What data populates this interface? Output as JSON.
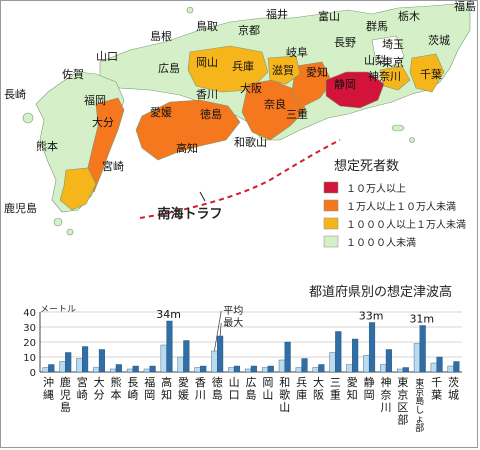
{
  "map": {
    "trough_label": "南海トラフ",
    "prefecture_labels": [
      {
        "name": "福島"
      },
      {
        "name": "鳥取"
      },
      {
        "name": "福井"
      },
      {
        "name": "富山"
      },
      {
        "name": "栃木"
      },
      {
        "name": "島根"
      },
      {
        "name": "京都"
      },
      {
        "name": "群馬"
      },
      {
        "name": "茨城"
      },
      {
        "name": "長野"
      },
      {
        "name": "埼玉"
      },
      {
        "name": "岐阜"
      },
      {
        "name": "山口"
      },
      {
        "name": "山梨"
      },
      {
        "name": "東京"
      },
      {
        "name": "千葉"
      },
      {
        "name": "佐賀"
      },
      {
        "name": "広島"
      },
      {
        "name": "岡山"
      },
      {
        "name": "兵庫"
      },
      {
        "name": "滋賀"
      },
      {
        "name": "愛知"
      },
      {
        "name": "静岡"
      },
      {
        "name": "神奈川"
      },
      {
        "name": "長崎"
      },
      {
        "name": "福岡"
      },
      {
        "name": "香川"
      },
      {
        "name": "大阪"
      },
      {
        "name": "大分"
      },
      {
        "name": "愛媛"
      },
      {
        "name": "徳島"
      },
      {
        "name": "奈良"
      },
      {
        "name": "三重"
      },
      {
        "name": "熊本"
      },
      {
        "name": "高知"
      },
      {
        "name": "和歌山"
      },
      {
        "name": "宮崎"
      },
      {
        "name": "鹿児島"
      }
    ]
  },
  "legend": {
    "title": "想定死者数",
    "items": [
      {
        "label": "１０万人以上",
        "color": "#d2143a"
      },
      {
        "label": "１万人以上１０万人未満",
        "color": "#f5781e"
      },
      {
        "label": "１０００人以上１万人未満",
        "color": "#f7b51c"
      },
      {
        "label": "１０００人未満",
        "color": "#d5f0c9"
      }
    ]
  },
  "chart_data": {
    "type": "bar",
    "title": "都道府県別の想定津波高",
    "ylabel": "メートル",
    "ylim": [
      0,
      40
    ],
    "yticks": [
      0,
      10,
      20,
      30,
      40
    ],
    "categories": [
      "沖縄",
      "鹿児島",
      "宮崎",
      "大分",
      "熊本",
      "長崎",
      "福岡",
      "高知",
      "愛媛",
      "香川",
      "徳島",
      "山口",
      "広島",
      "岡山",
      "和歌山",
      "兵庫",
      "大阪",
      "三重",
      "愛知",
      "静岡",
      "神奈川",
      "東京区部",
      "東京島しょ部",
      "千葉",
      "茨城"
    ],
    "category_labels": [
      "沖縄",
      "鹿児島",
      "宮崎",
      "大分",
      "熊本",
      "長崎",
      "福岡",
      "高知",
      "愛媛",
      "香川",
      "徳島",
      "山口",
      "広島",
      "岡山",
      "和歌山",
      "兵庫",
      "大阪",
      "三重",
      "愛知",
      "静岡",
      "神奈川",
      "東京区部",
      "東京島しょ部",
      "千葉",
      "茨城"
    ],
    "series": [
      {
        "name": "平均",
        "color": "#b9dcf0",
        "values": [
          3,
          7,
          9,
          3,
          2,
          2,
          2,
          18,
          10,
          3,
          14,
          3,
          2,
          3,
          8,
          3,
          3,
          13,
          5,
          11,
          5,
          2,
          19,
          6,
          4
        ]
      },
      {
        "name": "最大",
        "color": "#2f6ea6",
        "values": [
          5,
          13,
          17,
          15,
          5,
          4,
          4,
          34,
          21,
          4,
          24,
          4,
          4,
          4,
          20,
          9,
          5,
          27,
          22,
          33,
          15,
          3,
          31,
          10,
          7
        ]
      }
    ],
    "annotations": [
      {
        "text": "34m",
        "category": "高知"
      },
      {
        "text": "33m",
        "category": "静岡"
      },
      {
        "text": "31m",
        "category": "東京島しょ部"
      }
    ]
  }
}
